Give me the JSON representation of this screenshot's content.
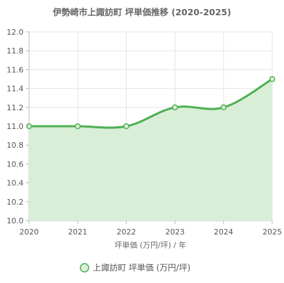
{
  "chart_data": {
    "type": "area",
    "title": "伊勢崎市上諏訪町 坪単価推移 (2020-2025)",
    "xlabel": "坪単価 (万円/坪) / 年",
    "ylabel": "",
    "x": [
      "2020",
      "2021",
      "2022",
      "2023",
      "2024",
      "2025"
    ],
    "series": [
      {
        "name": "上諏訪町 坪単価 (万円/坪)",
        "values": [
          11.0,
          11.0,
          11.0,
          11.2,
          11.2,
          11.5
        ]
      }
    ],
    "ylim": [
      10.0,
      12.0
    ],
    "yticks": [
      "10.0",
      "10.2",
      "10.4",
      "10.6",
      "10.8",
      "11.0",
      "11.2",
      "11.4",
      "11.6",
      "11.8",
      "12.0"
    ],
    "grid": true,
    "legend_position": "bottom",
    "colors": {
      "line": "#4caf50",
      "fill": "#d9eed7",
      "point_fill": "#dff0da",
      "grid": "#e6e6e6",
      "axis": "#bdbdbd"
    }
  }
}
